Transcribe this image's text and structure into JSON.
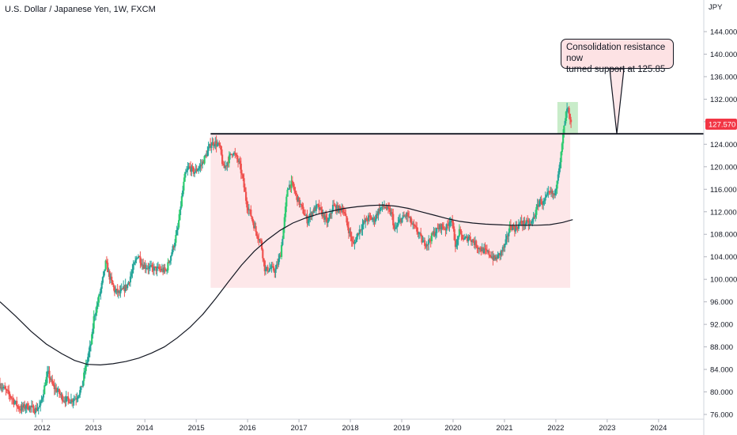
{
  "header": {
    "title": "U.S. Dollar / Japanese Yen, 1W, FXCM"
  },
  "chart_data": {
    "type": "candlestick",
    "currency": "JPY",
    "x_ticks": [
      "2012",
      "2013",
      "2014",
      "2015",
      "2016",
      "2017",
      "2018",
      "2019",
      "2020",
      "2021",
      "2022",
      "2023",
      "2024"
    ],
    "y_ticks": [
      "76.000",
      "80.000",
      "84.000",
      "88.000",
      "92.000",
      "96.000",
      "100.000",
      "104.000",
      "108.000",
      "112.000",
      "116.000",
      "120.000",
      "124.000",
      "128.000",
      "132.000",
      "136.000",
      "140.000",
      "144.000"
    ],
    "ylim": [
      75.0,
      148.0
    ],
    "xlim": [
      2011.3,
      2025.0
    ],
    "current_price_label": "127.570",
    "current_price": 127.57,
    "resistance_level": 125.85,
    "consolidation_zone": {
      "x_start": 2015.4,
      "x_end": 2022.4,
      "y_low": 98.5,
      "y_high": 125.85
    },
    "breakout_zone": {
      "x_start": 2022.15,
      "x_end": 2022.55,
      "y_low": 125.85,
      "y_high": 131.5
    },
    "annotation": {
      "text_line1": "Consolidation resistance now",
      "text_line2": "turned support at 125.85"
    },
    "price_path": [
      [
        2011.3,
        81.5
      ],
      [
        2011.5,
        79.5
      ],
      [
        2011.7,
        77.0
      ],
      [
        2011.85,
        77.5
      ],
      [
        2012.0,
        76.8
      ],
      [
        2012.1,
        77.5
      ],
      [
        2012.2,
        81.5
      ],
      [
        2012.25,
        83.5
      ],
      [
        2012.35,
        81.0
      ],
      [
        2012.45,
        80.0
      ],
      [
        2012.55,
        78.8
      ],
      [
        2012.7,
        78.5
      ],
      [
        2012.8,
        79.0
      ],
      [
        2012.9,
        80.5
      ],
      [
        2013.0,
        85.0
      ],
      [
        2013.1,
        89.0
      ],
      [
        2013.15,
        93.5
      ],
      [
        2013.2,
        95.0
      ],
      [
        2013.3,
        99.0
      ],
      [
        2013.38,
        103.0
      ],
      [
        2013.45,
        100.5
      ],
      [
        2013.55,
        98.0
      ],
      [
        2013.65,
        97.5
      ],
      [
        2013.8,
        99.0
      ],
      [
        2013.95,
        103.0
      ],
      [
        2014.0,
        104.5
      ],
      [
        2014.1,
        102.5
      ],
      [
        2014.25,
        102.0
      ],
      [
        2014.4,
        101.8
      ],
      [
        2014.55,
        101.5
      ],
      [
        2014.62,
        103.5
      ],
      [
        2014.7,
        106.0
      ],
      [
        2014.78,
        109.0
      ],
      [
        2014.85,
        114.0
      ],
      [
        2014.92,
        118.5
      ],
      [
        2015.0,
        120.0
      ],
      [
        2015.1,
        119.0
      ],
      [
        2015.25,
        120.5
      ],
      [
        2015.35,
        122.5
      ],
      [
        2015.42,
        124.0
      ],
      [
        2015.5,
        124.3
      ],
      [
        2015.6,
        123.5
      ],
      [
        2015.67,
        119.5
      ],
      [
        2015.75,
        121.0
      ],
      [
        2015.85,
        122.8
      ],
      [
        2015.98,
        120.5
      ],
      [
        2016.05,
        117.5
      ],
      [
        2016.12,
        113.5
      ],
      [
        2016.2,
        111.5
      ],
      [
        2016.3,
        108.5
      ],
      [
        2016.4,
        106.5
      ],
      [
        2016.48,
        101.5
      ],
      [
        2016.58,
        102.0
      ],
      [
        2016.68,
        101.5
      ],
      [
        2016.78,
        104.5
      ],
      [
        2016.85,
        110.0
      ],
      [
        2016.92,
        116.5
      ],
      [
        2017.0,
        117.0
      ],
      [
        2017.1,
        114.5
      ],
      [
        2017.2,
        112.5
      ],
      [
        2017.3,
        110.5
      ],
      [
        2017.4,
        112.0
      ],
      [
        2017.5,
        113.0
      ],
      [
        2017.6,
        111.5
      ],
      [
        2017.7,
        110.0
      ],
      [
        2017.8,
        113.0
      ],
      [
        2017.9,
        112.5
      ],
      [
        2018.0,
        112.5
      ],
      [
        2018.1,
        109.0
      ],
      [
        2018.2,
        106.0
      ],
      [
        2018.3,
        108.5
      ],
      [
        2018.4,
        110.0
      ],
      [
        2018.5,
        111.0
      ],
      [
        2018.6,
        110.5
      ],
      [
        2018.7,
        112.5
      ],
      [
        2018.8,
        113.0
      ],
      [
        2018.95,
        111.5
      ],
      [
        2019.0,
        108.5
      ],
      [
        2019.1,
        110.5
      ],
      [
        2019.25,
        111.5
      ],
      [
        2019.35,
        109.5
      ],
      [
        2019.45,
        108.5
      ],
      [
        2019.55,
        106.5
      ],
      [
        2019.65,
        106.5
      ],
      [
        2019.75,
        108.0
      ],
      [
        2019.9,
        109.5
      ],
      [
        2020.0,
        109.0
      ],
      [
        2020.1,
        111.0
      ],
      [
        2020.2,
        105.5
      ],
      [
        2020.25,
        108.5
      ],
      [
        2020.35,
        107.0
      ],
      [
        2020.45,
        107.5
      ],
      [
        2020.55,
        106.5
      ],
      [
        2020.65,
        105.5
      ],
      [
        2020.75,
        105.0
      ],
      [
        2020.85,
        104.5
      ],
      [
        2020.95,
        103.5
      ],
      [
        2021.05,
        104.5
      ],
      [
        2021.15,
        106.0
      ],
      [
        2021.25,
        109.5
      ],
      [
        2021.35,
        109.0
      ],
      [
        2021.45,
        110.0
      ],
      [
        2021.55,
        110.0
      ],
      [
        2021.65,
        109.7
      ],
      [
        2021.75,
        112.0
      ],
      [
        2021.82,
        114.0
      ],
      [
        2021.9,
        113.5
      ],
      [
        2021.98,
        115.0
      ],
      [
        2022.05,
        115.3
      ],
      [
        2022.12,
        114.8
      ],
      [
        2022.18,
        119.0
      ],
      [
        2022.24,
        122.0
      ],
      [
        2022.28,
        125.5
      ],
      [
        2022.33,
        129.0
      ],
      [
        2022.37,
        130.5
      ],
      [
        2022.42,
        127.6
      ]
    ],
    "moving_average": [
      [
        2011.3,
        96.0
      ],
      [
        2011.6,
        93.5
      ],
      [
        2011.9,
        90.8
      ],
      [
        2012.2,
        88.5
      ],
      [
        2012.5,
        86.8
      ],
      [
        2012.75,
        85.6
      ],
      [
        2013.0,
        84.9
      ],
      [
        2013.25,
        84.8
      ],
      [
        2013.5,
        85.0
      ],
      [
        2013.75,
        85.4
      ],
      [
        2014.0,
        86.0
      ],
      [
        2014.25,
        86.9
      ],
      [
        2014.5,
        88.0
      ],
      [
        2014.75,
        89.6
      ],
      [
        2015.0,
        91.5
      ],
      [
        2015.25,
        93.8
      ],
      [
        2015.5,
        96.6
      ],
      [
        2015.75,
        99.6
      ],
      [
        2016.0,
        102.5
      ],
      [
        2016.25,
        105.0
      ],
      [
        2016.5,
        107.0
      ],
      [
        2016.75,
        108.7
      ],
      [
        2017.0,
        110.0
      ],
      [
        2017.25,
        110.9
      ],
      [
        2017.5,
        111.6
      ],
      [
        2017.75,
        112.1
      ],
      [
        2018.0,
        112.6
      ],
      [
        2018.25,
        112.9
      ],
      [
        2018.5,
        113.1
      ],
      [
        2018.75,
        113.2
      ],
      [
        2019.0,
        113.0
      ],
      [
        2019.25,
        112.6
      ],
      [
        2019.5,
        112.0
      ],
      [
        2019.75,
        111.4
      ],
      [
        2020.0,
        110.8
      ],
      [
        2020.25,
        110.3
      ],
      [
        2020.5,
        110.0
      ],
      [
        2020.75,
        109.8
      ],
      [
        2021.0,
        109.7
      ],
      [
        2021.25,
        109.6
      ],
      [
        2021.5,
        109.6
      ],
      [
        2021.75,
        109.6
      ],
      [
        2022.0,
        109.7
      ],
      [
        2022.25,
        110.1
      ],
      [
        2022.45,
        110.6
      ]
    ],
    "colors": {
      "up": "#26a69a",
      "up_bright": "#2ecc71",
      "down": "#ef5350",
      "zone_fill": "#fde7e9",
      "breakout_fill": "#c8ecc9",
      "line": "#131722",
      "price_label_bg": "#f23645",
      "axis_text": "#787b86"
    }
  }
}
